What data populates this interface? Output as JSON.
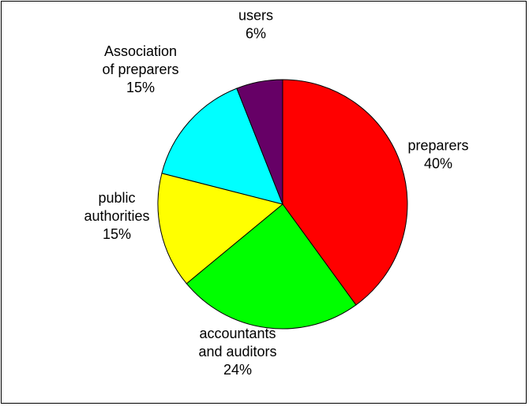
{
  "chart_data": {
    "type": "pie",
    "title": "",
    "start_angle_deg": 0,
    "direction": "clockwise",
    "slices": [
      {
        "name": "preparers",
        "label_lines": [
          "preparers"
        ],
        "pct_label": "40%",
        "value": 40,
        "color": "#ff0000"
      },
      {
        "name": "accountants and auditors",
        "label_lines": [
          "accountants",
          "and auditors"
        ],
        "pct_label": "24%",
        "value": 24,
        "color": "#00ff00"
      },
      {
        "name": "public authorities",
        "label_lines": [
          "public",
          "authorities"
        ],
        "pct_label": "15%",
        "value": 15,
        "color": "#ffff00"
      },
      {
        "name": "Association of preparers",
        "label_lines": [
          "Association",
          "of preparers"
        ],
        "pct_label": "15%",
        "value": 15,
        "color": "#00ffff"
      },
      {
        "name": "users",
        "label_lines": [
          "users"
        ],
        "pct_label": "6%",
        "value": 6,
        "color": "#660066"
      }
    ]
  }
}
